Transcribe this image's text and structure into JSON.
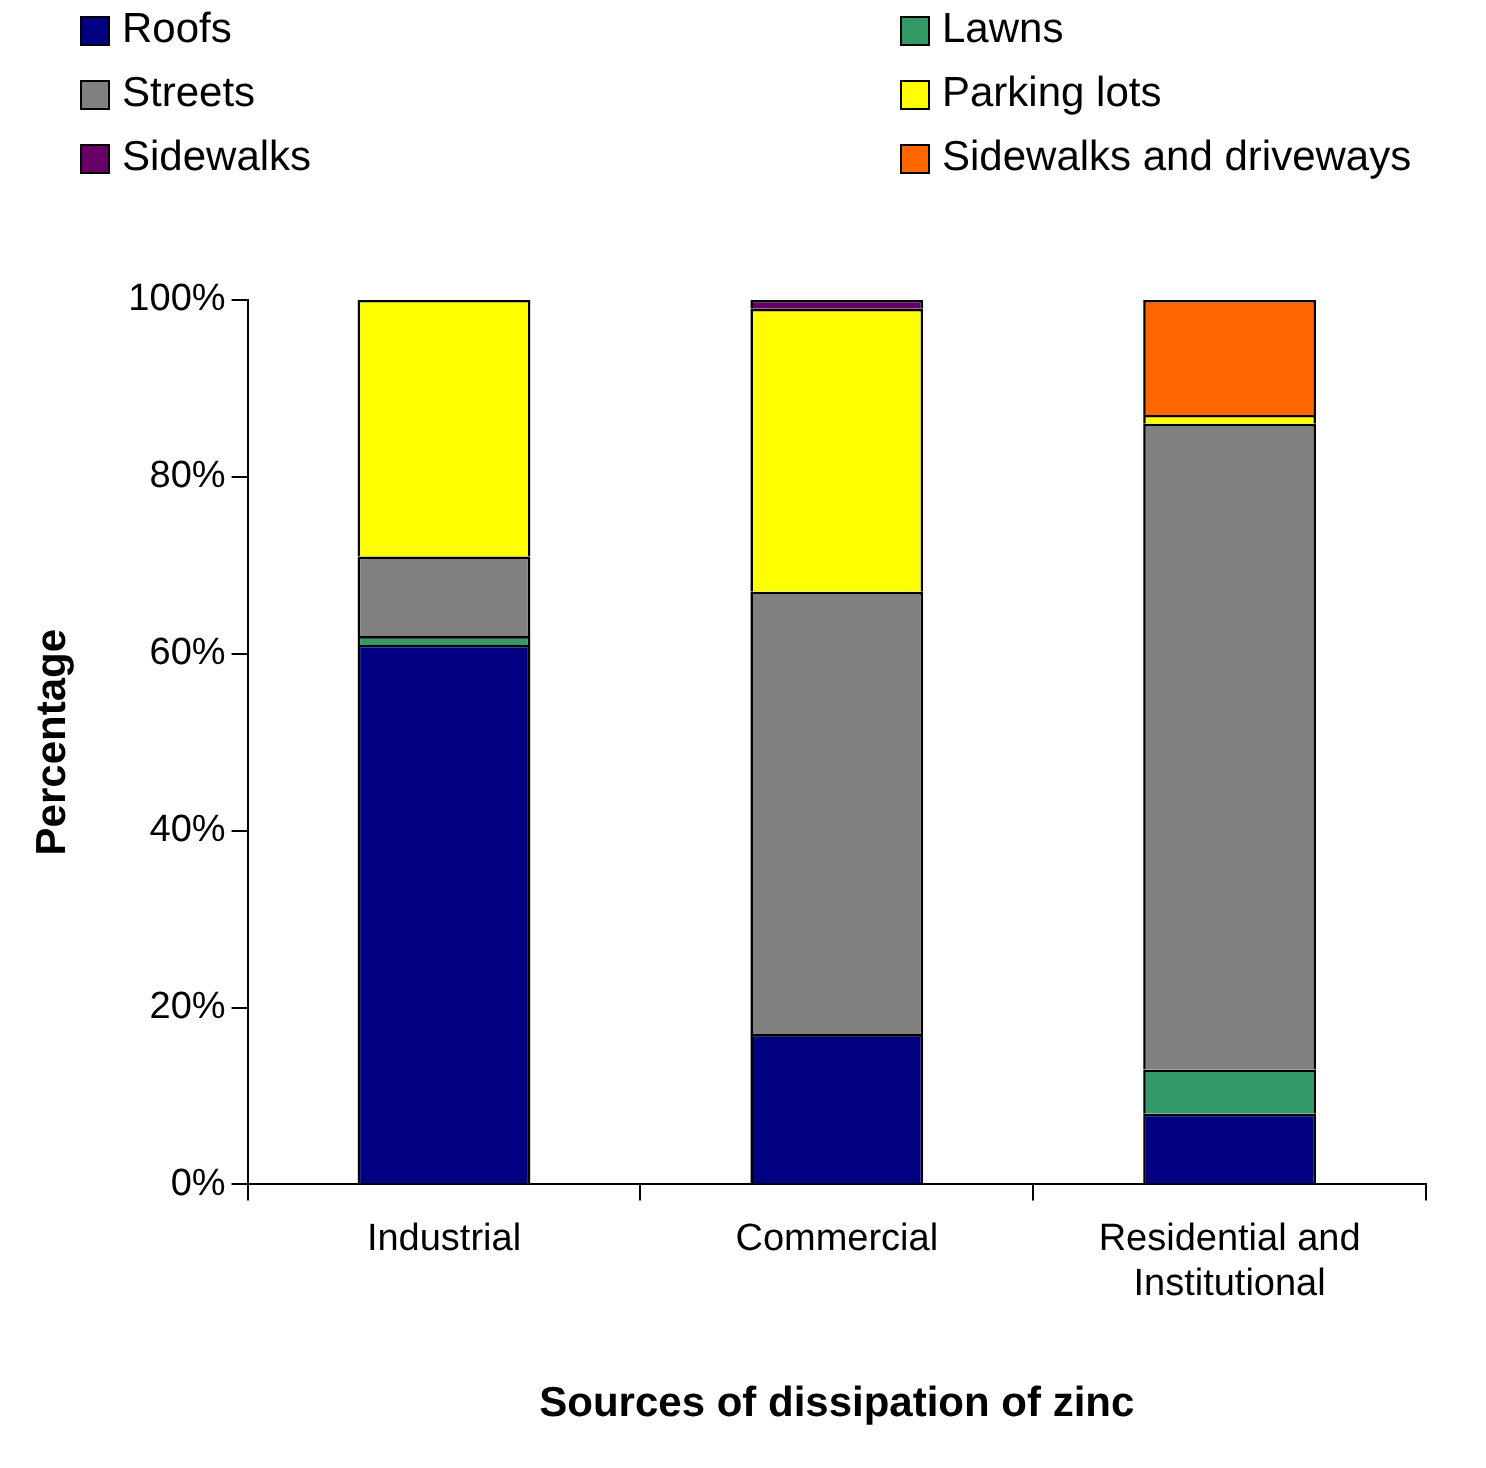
{
  "chart_data": {
    "type": "bar",
    "stacked": true,
    "xlabel": "Sources of dissipation of zinc",
    "ylabel": "Percentage",
    "categories": [
      "Industrial",
      "Commercial",
      "Residential and Institutional"
    ],
    "series": [
      {
        "name": "Roofs",
        "color": "#000080",
        "values": [
          61,
          17,
          8
        ]
      },
      {
        "name": "Lawns",
        "color": "#339966",
        "values": [
          1,
          0,
          5
        ]
      },
      {
        "name": "Streets",
        "color": "#808080",
        "values": [
          9,
          50,
          73
        ]
      },
      {
        "name": "Parking lots",
        "color": "#ffff00",
        "values": [
          29,
          32,
          1
        ]
      },
      {
        "name": "Sidewalks",
        "color": "#660066",
        "values": [
          0,
          1,
          0
        ]
      },
      {
        "name": "Sidewalks and driveways",
        "color": "#ff6600",
        "values": [
          0,
          0,
          13
        ]
      }
    ],
    "ylim": [
      0,
      100
    ],
    "yticks": [
      {
        "value": 0,
        "label": "0%"
      },
      {
        "value": 20,
        "label": "20%"
      },
      {
        "value": 40,
        "label": "40%"
      },
      {
        "value": 60,
        "label": "60%"
      },
      {
        "value": 80,
        "label": "80%"
      },
      {
        "value": 100,
        "label": "100%"
      }
    ],
    "grid": false,
    "legend": "top"
  }
}
